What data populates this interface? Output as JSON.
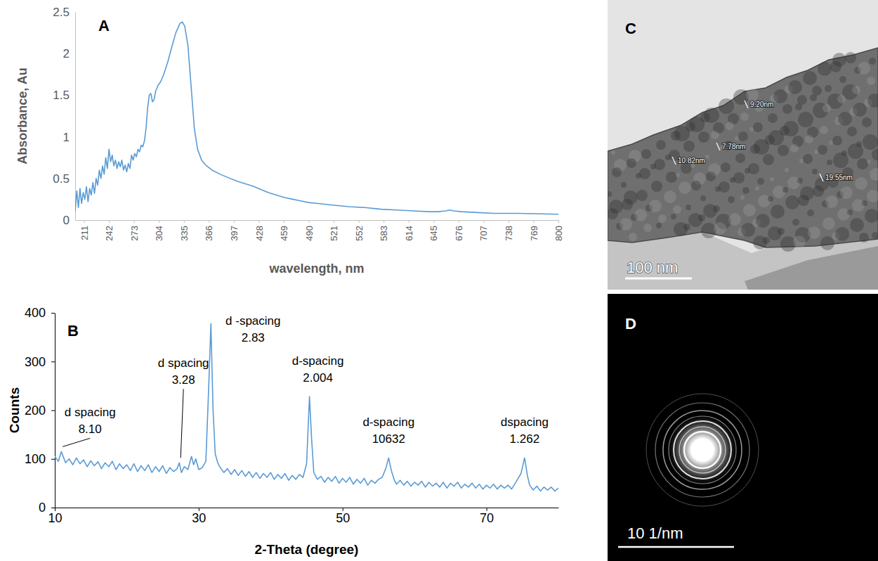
{
  "chart_data": [
    {
      "panel": "A",
      "type": "line",
      "x_label": "wavelength, nm",
      "y_label": "Absorbance, Au",
      "color": "#5b9bd5",
      "x": [
        200,
        202,
        204,
        206,
        208,
        210,
        212,
        214,
        216,
        218,
        220,
        222,
        224,
        226,
        228,
        230,
        232,
        234,
        236,
        238,
        240,
        242,
        244,
        246,
        248,
        250,
        252,
        254,
        256,
        258,
        260,
        262,
        264,
        266,
        268,
        270,
        272,
        274,
        276,
        278,
        280,
        282,
        284,
        286,
        288,
        290,
        292,
        294,
        296,
        298,
        300,
        303,
        306,
        310,
        315,
        320,
        325,
        330,
        333,
        336,
        340,
        344,
        348,
        352,
        357,
        362,
        370,
        380,
        390,
        400,
        410,
        420,
        430,
        440,
        450,
        460,
        470,
        480,
        490,
        500,
        520,
        540,
        560,
        580,
        600,
        620,
        640,
        650,
        660,
        665,
        670,
        680,
        700,
        720,
        750,
        800
      ],
      "values": [
        0.1,
        0.35,
        0.15,
        0.38,
        0.2,
        0.33,
        0.25,
        0.4,
        0.22,
        0.38,
        0.3,
        0.45,
        0.32,
        0.5,
        0.42,
        0.6,
        0.5,
        0.65,
        0.55,
        0.75,
        0.62,
        0.85,
        0.7,
        0.78,
        0.65,
        0.72,
        0.62,
        0.7,
        0.64,
        0.72,
        0.6,
        0.66,
        0.58,
        0.68,
        0.62,
        0.78,
        0.72,
        0.8,
        0.76,
        0.85,
        0.82,
        0.9,
        0.88,
        0.95,
        1.1,
        1.35,
        1.5,
        1.52,
        1.42,
        1.45,
        1.55,
        1.62,
        1.66,
        1.75,
        1.9,
        2.08,
        2.25,
        2.36,
        2.38,
        2.33,
        2.1,
        1.6,
        1.1,
        0.85,
        0.72,
        0.66,
        0.6,
        0.55,
        0.51,
        0.47,
        0.44,
        0.41,
        0.37,
        0.33,
        0.3,
        0.27,
        0.25,
        0.23,
        0.21,
        0.2,
        0.18,
        0.16,
        0.15,
        0.13,
        0.12,
        0.11,
        0.1,
        0.1,
        0.11,
        0.12,
        0.11,
        0.1,
        0.09,
        0.08,
        0.08,
        0.07
      ],
      "xlim": [
        200,
        800
      ],
      "xticks": [
        211,
        242,
        273,
        304,
        335,
        366,
        397,
        428,
        459,
        490,
        521,
        552,
        583,
        614,
        645,
        676,
        707,
        738,
        769,
        800
      ],
      "ylim": [
        0,
        2.5
      ],
      "yticks": [
        0,
        0.5,
        1,
        1.5,
        2,
        2.5
      ]
    },
    {
      "panel": "B",
      "type": "line",
      "x_label": "2-Theta (degree)",
      "y_label": "Counts",
      "color": "#5b9bd5",
      "x": [
        10,
        10.5,
        10.9,
        11.5,
        12,
        12.5,
        13,
        13.5,
        14,
        14.5,
        15,
        15.5,
        16,
        16.5,
        17,
        17.5,
        18,
        18.5,
        19,
        19.5,
        20,
        20.5,
        21,
        21.5,
        22,
        22.5,
        23,
        23.5,
        24,
        24.5,
        25,
        25.5,
        26,
        26.5,
        27,
        27.3,
        27.6,
        28,
        28.5,
        29,
        29.3,
        29.6,
        30,
        30.5,
        31,
        31.4,
        31.7,
        32,
        32.3,
        32.7,
        33,
        33.5,
        34,
        34.5,
        35,
        35.5,
        36,
        36.5,
        37,
        37.5,
        38,
        38.5,
        39,
        39.5,
        40,
        40.5,
        41,
        41.5,
        42,
        42.5,
        43,
        43.5,
        44,
        44.5,
        45,
        45.4,
        45.7,
        46,
        46.5,
        47,
        47.5,
        48,
        48.5,
        49,
        49.5,
        50,
        50.5,
        51,
        51.5,
        52,
        52.5,
        53,
        53.5,
        54,
        54.5,
        55,
        55.5,
        56,
        56.4,
        56.8,
        57.2,
        57.5,
        58,
        58.5,
        59,
        59.5,
        60,
        60.5,
        61,
        61.5,
        62,
        62.5,
        63,
        63.5,
        64,
        64.5,
        65,
        65.5,
        66,
        66.5,
        67,
        67.5,
        68,
        68.5,
        69,
        69.5,
        70,
        70.5,
        71,
        71.5,
        72,
        72.5,
        73,
        73.5,
        74,
        74.8,
        75.3,
        75.7,
        76,
        76.5,
        77,
        77.5,
        78,
        78.5,
        79,
        79.5,
        80
      ],
      "values": [
        105,
        95,
        115,
        92,
        100,
        88,
        102,
        90,
        98,
        84,
        96,
        86,
        94,
        80,
        92,
        84,
        95,
        78,
        90,
        80,
        88,
        76,
        90,
        74,
        86,
        76,
        88,
        72,
        84,
        74,
        86,
        70,
        82,
        74,
        80,
        92,
        72,
        84,
        78,
        105,
        88,
        100,
        78,
        82,
        95,
        250,
        378,
        200,
        110,
        90,
        82,
        72,
        80,
        68,
        78,
        66,
        76,
        64,
        74,
        62,
        72,
        60,
        70,
        62,
        72,
        58,
        68,
        60,
        70,
        56,
        66,
        58,
        68,
        62,
        90,
        228,
        140,
        72,
        58,
        64,
        52,
        62,
        54,
        64,
        50,
        60,
        52,
        62,
        48,
        58,
        50,
        60,
        46,
        56,
        50,
        58,
        62,
        80,
        102,
        75,
        56,
        48,
        56,
        46,
        54,
        44,
        52,
        46,
        54,
        42,
        52,
        44,
        50,
        42,
        52,
        40,
        50,
        44,
        52,
        40,
        48,
        42,
        50,
        40,
        48,
        38,
        46,
        40,
        48,
        38,
        46,
        40,
        46,
        38,
        50,
        70,
        102,
        65,
        46,
        36,
        44,
        34,
        42,
        36,
        42,
        34,
        40
      ],
      "xlim": [
        10,
        80
      ],
      "xticks": [
        10,
        30,
        50,
        70
      ],
      "ylim": [
        0,
        400
      ],
      "yticks": [
        0,
        100,
        200,
        300,
        400
      ],
      "annotations": [
        {
          "x": 10.9,
          "y": 115,
          "text": [
            "d spacing",
            "8.10"
          ]
        },
        {
          "x": 27.3,
          "y": 92,
          "text": [
            "d spacing",
            "3.28"
          ]
        },
        {
          "x": 31.7,
          "y": 378,
          "text": [
            "d -spacing",
            "2.83"
          ]
        },
        {
          "x": 45.4,
          "y": 228,
          "text": [
            "d-spacing",
            "2.004"
          ]
        },
        {
          "x": 56.4,
          "y": 102,
          "text": [
            "d-spacing",
            "10632"
          ]
        },
        {
          "x": 75.3,
          "y": 102,
          "text": [
            "dspacing",
            "1.262"
          ]
        }
      ]
    }
  ],
  "images": [
    {
      "panel": "C",
      "scale_bar": "100 nm",
      "measurements": [
        "9.20nm",
        "7.78nm",
        "10.82nm",
        "19.55nm"
      ]
    },
    {
      "panel": "D",
      "scale_bar": "10 1/nm"
    }
  ]
}
